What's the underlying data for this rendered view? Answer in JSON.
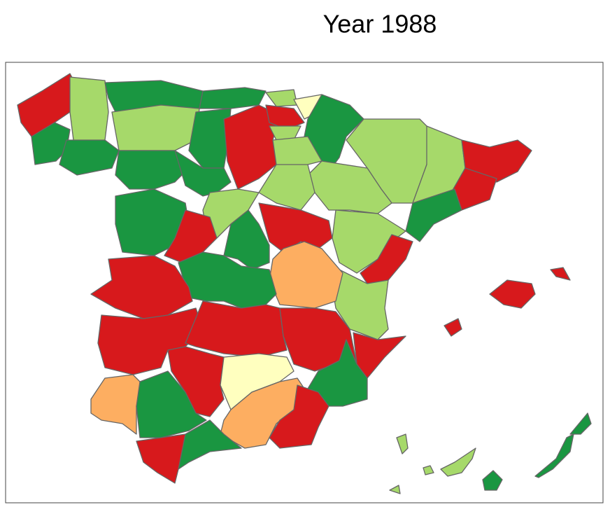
{
  "title": "Year 1988"
}
